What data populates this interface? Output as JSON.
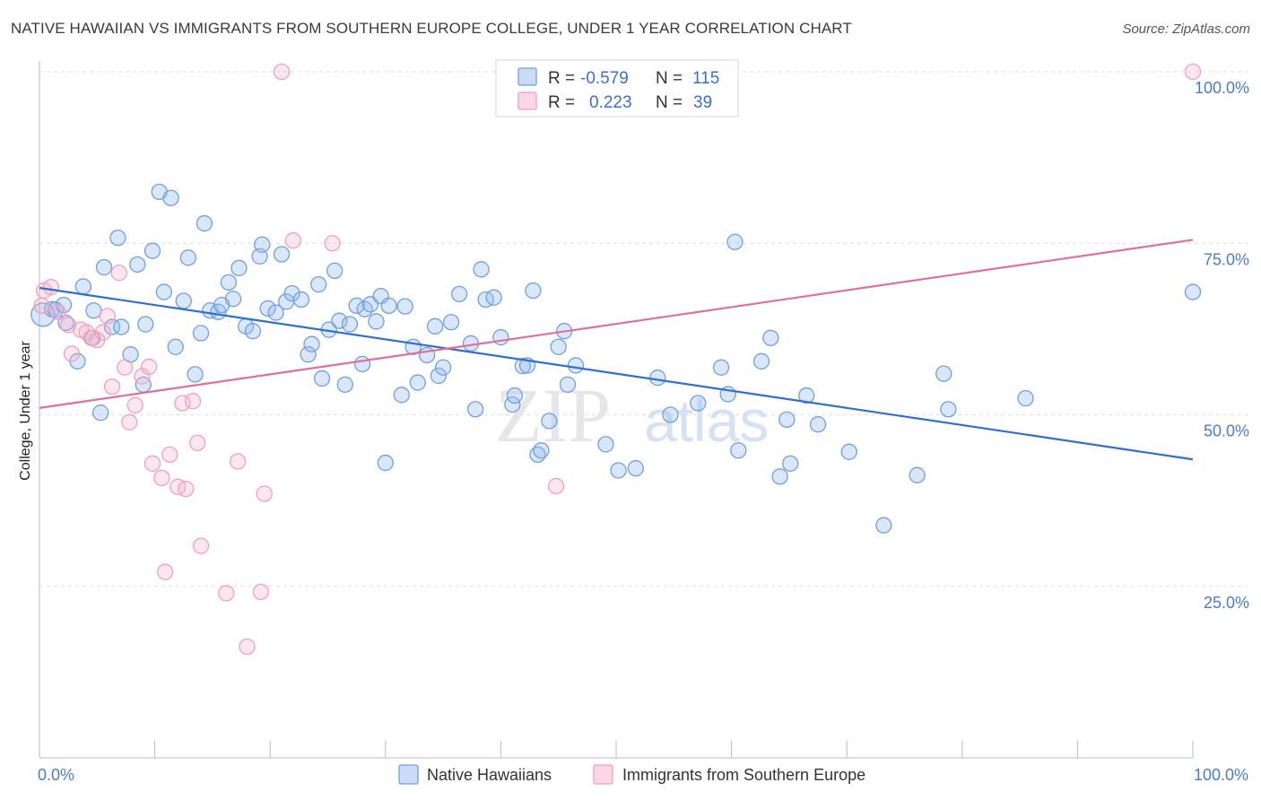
{
  "title": "NATIVE HAWAIIAN VS IMMIGRANTS FROM SOUTHERN EUROPE COLLEGE, UNDER 1 YEAR CORRELATION CHART",
  "source": "Source: ZipAtlas.com",
  "watermark": {
    "zip": "ZIP",
    "atlas": "atlas"
  },
  "colors": {
    "blue": "#6f9fe0",
    "blue_fill": "rgba(150,185,240,0.35)",
    "blue_line": "#2f6fd0",
    "pink": "#f0a0b8",
    "pink_fill": "rgba(245,175,200,0.30)",
    "pink_line": "#e0709a"
  },
  "legend": {
    "row1": {
      "r_label": "R =",
      "r_value": "-0.579",
      "n_label": "N =",
      "n_value": "115"
    },
    "row2": {
      "r_label": "R =",
      "r_value": "0.223",
      "n_label": "N =",
      "n_value": "39"
    }
  },
  "bottom_legend": {
    "series1": "Native Hawaiians",
    "series2": "Immigrants from Southern Europe"
  },
  "chart_data": {
    "type": "scatter",
    "xlabel": "",
    "ylabel": "College, Under 1 year",
    "xlim": [
      0,
      100
    ],
    "ylim": [
      0,
      100
    ],
    "x_tick_labels": [
      "0.0%",
      "100.0%"
    ],
    "y_tick_labels": [
      "25.0%",
      "50.0%",
      "75.0%",
      "100.0%"
    ],
    "y_ticks": [
      25,
      50,
      75,
      100
    ],
    "grid": true,
    "series": [
      {
        "name": "Native Hawaiians",
        "trend": {
          "x": [
            0,
            100
          ],
          "y": [
            68.5,
            43.5
          ]
        },
        "points": [
          [
            0.3,
            64.6
          ],
          [
            1.1,
            65.4
          ],
          [
            1.4,
            65.3
          ],
          [
            2.3,
            63.4
          ],
          [
            2.1,
            66.0
          ],
          [
            3.3,
            57.8
          ],
          [
            3.8,
            68.7
          ],
          [
            4.6,
            61.2
          ],
          [
            4.7,
            65.2
          ],
          [
            5.3,
            50.3
          ],
          [
            5.6,
            71.5
          ],
          [
            6.3,
            62.8
          ],
          [
            6.8,
            75.8
          ],
          [
            7.1,
            62.8
          ],
          [
            7.9,
            58.8
          ],
          [
            8.5,
            71.9
          ],
          [
            9.0,
            54.4
          ],
          [
            9.2,
            63.2
          ],
          [
            9.8,
            73.9
          ],
          [
            10.4,
            82.5
          ],
          [
            10.8,
            67.9
          ],
          [
            11.4,
            81.6
          ],
          [
            11.8,
            59.9
          ],
          [
            12.5,
            66.6
          ],
          [
            12.9,
            72.9
          ],
          [
            13.5,
            55.9
          ],
          [
            14.0,
            61.9
          ],
          [
            14.3,
            77.9
          ],
          [
            14.8,
            65.2
          ],
          [
            15.5,
            65.0
          ],
          [
            15.8,
            66.0
          ],
          [
            16.4,
            69.3
          ],
          [
            16.8,
            66.9
          ],
          [
            17.3,
            71.4
          ],
          [
            17.9,
            62.9
          ],
          [
            18.5,
            62.2
          ],
          [
            19.1,
            73.1
          ],
          [
            19.3,
            74.8
          ],
          [
            19.8,
            65.5
          ],
          [
            20.5,
            64.9
          ],
          [
            21.0,
            73.4
          ],
          [
            21.4,
            66.5
          ],
          [
            21.9,
            67.7
          ],
          [
            22.7,
            66.8
          ],
          [
            23.3,
            58.8
          ],
          [
            23.6,
            60.3
          ],
          [
            24.2,
            69.0
          ],
          [
            24.5,
            55.3
          ],
          [
            25.1,
            62.4
          ],
          [
            25.6,
            71.0
          ],
          [
            26.0,
            63.7
          ],
          [
            26.5,
            54.4
          ],
          [
            26.9,
            63.2
          ],
          [
            27.5,
            65.9
          ],
          [
            28.0,
            57.4
          ],
          [
            28.2,
            65.4
          ],
          [
            28.7,
            66.1
          ],
          [
            29.2,
            63.6
          ],
          [
            29.6,
            67.3
          ],
          [
            30.0,
            43.0
          ],
          [
            30.3,
            65.9
          ],
          [
            31.4,
            52.9
          ],
          [
            31.7,
            65.8
          ],
          [
            32.4,
            59.9
          ],
          [
            32.8,
            54.7
          ],
          [
            33.6,
            58.7
          ],
          [
            34.3,
            62.9
          ],
          [
            34.6,
            55.7
          ],
          [
            35.0,
            56.9
          ],
          [
            35.7,
            63.5
          ],
          [
            36.4,
            67.6
          ],
          [
            37.4,
            60.4
          ],
          [
            37.8,
            50.8
          ],
          [
            38.3,
            71.2
          ],
          [
            38.7,
            66.8
          ],
          [
            39.4,
            67.1
          ],
          [
            40.0,
            61.3
          ],
          [
            41.0,
            51.5
          ],
          [
            41.2,
            52.8
          ],
          [
            41.9,
            57.1
          ],
          [
            42.3,
            57.2
          ],
          [
            42.8,
            68.1
          ],
          [
            43.2,
            44.2
          ],
          [
            43.5,
            44.8
          ],
          [
            44.2,
            49.1
          ],
          [
            45.0,
            59.9
          ],
          [
            45.5,
            62.2
          ],
          [
            45.8,
            54.4
          ],
          [
            46.5,
            57.2
          ],
          [
            49.1,
            45.7
          ],
          [
            50.2,
            41.9
          ],
          [
            51.7,
            42.2
          ],
          [
            53.6,
            55.4
          ],
          [
            54.7,
            50.0
          ],
          [
            57.1,
            51.7
          ],
          [
            59.1,
            56.9
          ],
          [
            59.7,
            53.0
          ],
          [
            60.3,
            75.2
          ],
          [
            60.6,
            44.8
          ],
          [
            62.6,
            57.8
          ],
          [
            63.4,
            61.2
          ],
          [
            64.2,
            41.0
          ],
          [
            64.8,
            49.3
          ],
          [
            65.1,
            42.9
          ],
          [
            66.5,
            52.8
          ],
          [
            67.5,
            48.6
          ],
          [
            70.2,
            44.6
          ],
          [
            73.2,
            33.9
          ],
          [
            76.1,
            41.2
          ],
          [
            78.4,
            56.0
          ],
          [
            78.8,
            50.8
          ],
          [
            85.5,
            52.4
          ],
          [
            100.0,
            67.9
          ]
        ]
      },
      {
        "name": "Immigrants from Southern Europe",
        "trend": {
          "x": [
            0,
            100
          ],
          "y": [
            51.0,
            75.5
          ]
        },
        "points": [
          [
            0.2,
            65.9
          ],
          [
            0.4,
            68.1
          ],
          [
            1.0,
            68.6
          ],
          [
            1.6,
            65.0
          ],
          [
            2.5,
            63.1
          ],
          [
            2.8,
            58.9
          ],
          [
            3.6,
            62.4
          ],
          [
            4.1,
            62.0
          ],
          [
            4.5,
            61.2
          ],
          [
            5.0,
            60.9
          ],
          [
            5.5,
            62.0
          ],
          [
            5.9,
            64.4
          ],
          [
            6.3,
            54.1
          ],
          [
            6.9,
            70.7
          ],
          [
            7.4,
            56.9
          ],
          [
            7.8,
            48.9
          ],
          [
            8.3,
            51.4
          ],
          [
            8.9,
            55.6
          ],
          [
            9.5,
            57.0
          ],
          [
            9.8,
            42.9
          ],
          [
            10.6,
            40.8
          ],
          [
            10.9,
            27.1
          ],
          [
            11.3,
            44.2
          ],
          [
            12.0,
            39.5
          ],
          [
            12.4,
            51.7
          ],
          [
            12.7,
            39.2
          ],
          [
            13.3,
            52.0
          ],
          [
            13.7,
            45.9
          ],
          [
            14.0,
            30.9
          ],
          [
            16.2,
            24.0
          ],
          [
            17.2,
            43.2
          ],
          [
            18.0,
            16.2
          ],
          [
            19.2,
            24.2
          ],
          [
            19.5,
            38.5
          ],
          [
            21.0,
            100.0
          ],
          [
            22.0,
            75.4
          ],
          [
            25.4,
            75.0
          ],
          [
            44.8,
            39.6
          ],
          [
            100.0,
            100.0
          ]
        ]
      }
    ]
  }
}
